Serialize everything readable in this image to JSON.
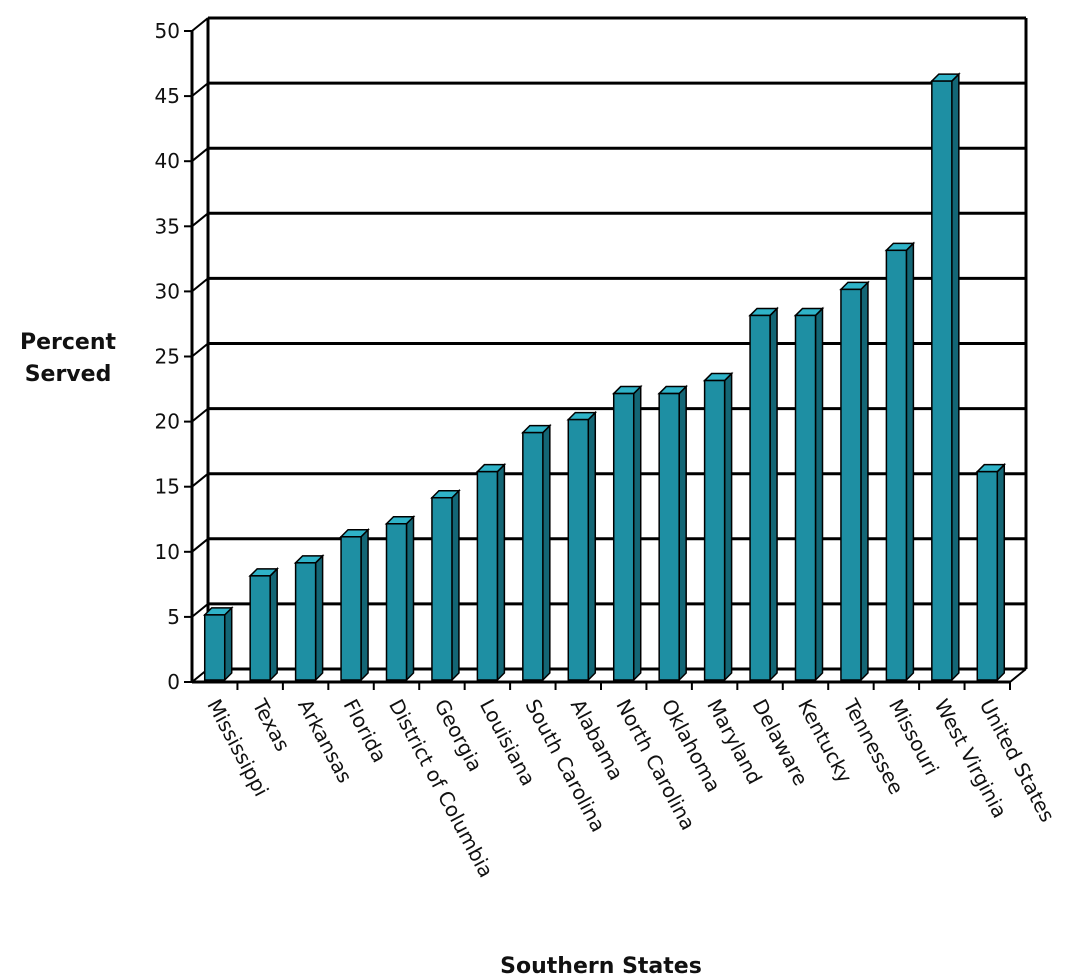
{
  "chart_data": {
    "type": "bar",
    "title": "",
    "xlabel": "Southern States",
    "ylabel_lines": [
      "Percent",
      "Served"
    ],
    "categories": [
      "Mississippi",
      "Texas",
      "Arkansas",
      "Florida",
      "District of Columbia",
      "Georgia",
      "Louisiana",
      "South Carolina",
      "Alabama",
      "North Carolina",
      "Oklahoma",
      "Maryland",
      "Delaware",
      "Kentucky",
      "Tennessee",
      "Missouri",
      "West Virginia",
      "United States"
    ],
    "values": [
      5,
      8,
      9,
      11,
      12,
      14,
      16,
      19,
      20,
      22,
      22,
      23,
      28,
      28,
      30,
      33,
      46,
      16
    ],
    "yticks": [
      "0",
      "5",
      "10",
      "15",
      "20",
      "25",
      "30",
      "35",
      "40",
      "45",
      "50"
    ],
    "ylim": [
      0,
      50
    ],
    "grid": true,
    "style": "3d",
    "bar_color": "#1e8fa3"
  }
}
